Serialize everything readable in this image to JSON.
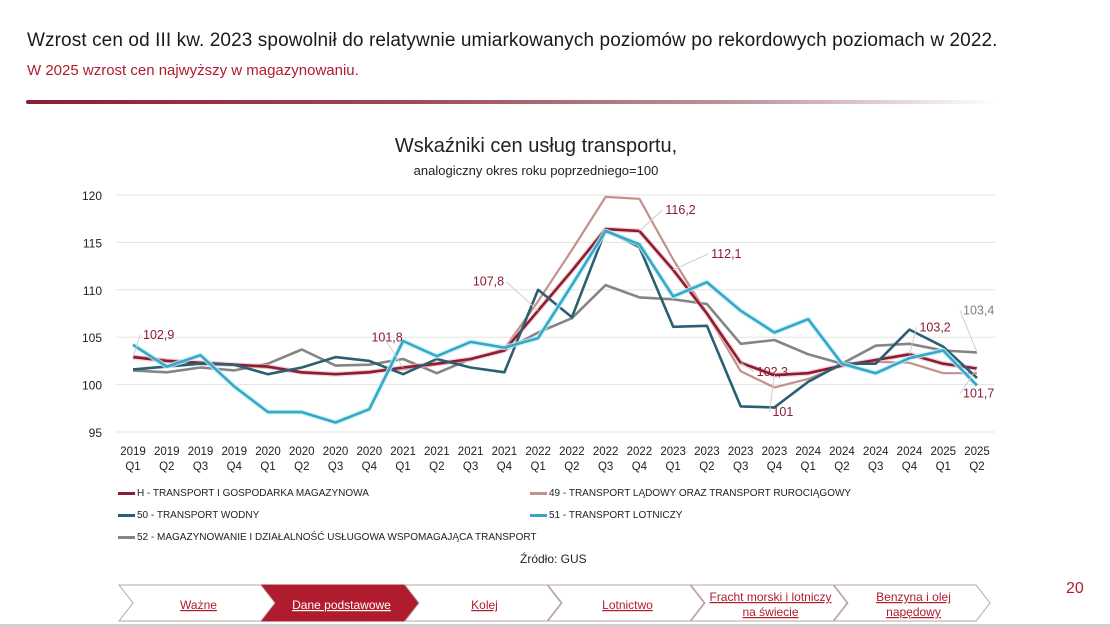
{
  "header": {
    "headline": "Wzrost cen od III kw. 2023 spowolnił do relatywnie umiarkowanych poziomów po rekordowych poziomach w 2022.",
    "subheadline": "W 2025 wzrost cen najwyższy w magazynowaniu."
  },
  "chart_data": {
    "type": "line",
    "title": "Wskaźniki cen usług transportu,",
    "subtitle": "analogiczny okres roku poprzedniego=100",
    "xlabel": "",
    "ylabel": "",
    "ylim": [
      95,
      120
    ],
    "yticks": [
      95,
      100,
      105,
      110,
      115,
      120
    ],
    "grid": true,
    "legend_position": "bottom",
    "categories": [
      [
        "2019",
        "Q1"
      ],
      [
        "2019",
        "Q2"
      ],
      [
        "2019",
        "Q3"
      ],
      [
        "2019",
        "Q4"
      ],
      [
        "2020",
        "Q1"
      ],
      [
        "2020",
        "Q2"
      ],
      [
        "2020",
        "Q3"
      ],
      [
        "2020",
        "Q4"
      ],
      [
        "2021",
        "Q1"
      ],
      [
        "2021",
        "Q2"
      ],
      [
        "2021",
        "Q3"
      ],
      [
        "2021",
        "Q4"
      ],
      [
        "2022",
        "Q1"
      ],
      [
        "2022",
        "Q2"
      ],
      [
        "2022",
        "Q3"
      ],
      [
        "2022",
        "Q4"
      ],
      [
        "2023",
        "Q1"
      ],
      [
        "2023",
        "Q2"
      ],
      [
        "2023",
        "Q3"
      ],
      [
        "2023",
        "Q4"
      ],
      [
        "2024",
        "Q1"
      ],
      [
        "2024",
        "Q2"
      ],
      [
        "2024",
        "Q3"
      ],
      [
        "2024",
        "Q4"
      ],
      [
        "2025",
        "Q1"
      ],
      [
        "2025",
        "Q2"
      ]
    ],
    "series": [
      {
        "name": "H - TRANSPORT I GOSPODARKA MAGAZYNOWA",
        "color": "#8b1d33",
        "values": [
          102.9,
          102.5,
          102.3,
          102.1,
          101.9,
          101.3,
          101.1,
          101.3,
          101.8,
          102.2,
          102.7,
          103.6,
          107.8,
          112.0,
          116.4,
          116.2,
          112.1,
          107.5,
          102.3,
          101.0,
          101.2,
          102.0,
          102.6,
          103.2,
          102.2,
          101.7
        ]
      },
      {
        "name": "49 - TRANSPORT LĄDOWY ORAZ TRANSPORT RUROCIĄGOWY",
        "color": "#c4908e",
        "values": [
          103.0,
          102.6,
          102.3,
          102.1,
          101.8,
          101.2,
          101.1,
          101.4,
          101.6,
          102.1,
          102.6,
          103.8,
          108.8,
          114.2,
          119.8,
          119.6,
          113.2,
          107.5,
          101.4,
          99.7,
          100.6,
          102.0,
          102.4,
          102.3,
          101.2,
          101.2
        ]
      },
      {
        "name": "50 - TRANSPORT WODNY",
        "color": "#2b5f72",
        "values": [
          101.6,
          101.9,
          102.2,
          102.1,
          101.1,
          101.8,
          102.9,
          102.5,
          101.1,
          102.7,
          101.8,
          101.3,
          110.0,
          107.1,
          116.3,
          114.5,
          106.1,
          106.2,
          97.7,
          97.6,
          100.3,
          102.2,
          102.2,
          105.8,
          104.0,
          100.7
        ]
      },
      {
        "name": "51 - TRANSPORT LOTNICZY",
        "color": "#3aa6c4",
        "values": [
          104.2,
          101.9,
          103.1,
          99.8,
          97.1,
          97.1,
          96.0,
          97.4,
          104.6,
          103.0,
          104.5,
          103.9,
          104.9,
          110.5,
          116.2,
          114.8,
          109.3,
          110.8,
          107.8,
          105.5,
          106.9,
          102.2,
          101.2,
          102.8,
          103.6,
          99.9
        ]
      },
      {
        "name": "52 - MAGAZYNOWANIE I DZIAŁALNOŚĆ USŁUGOWA WSPOMAGAJĄCA TRANSPORT",
        "color": "#858585",
        "values": [
          101.5,
          101.3,
          101.8,
          101.5,
          102.2,
          103.7,
          102.0,
          102.1,
          102.7,
          101.2,
          102.7,
          103.6,
          105.5,
          107.0,
          110.5,
          109.2,
          109.0,
          108.5,
          104.3,
          104.7,
          103.2,
          102.2,
          104.1,
          104.3,
          103.6,
          103.4
        ]
      }
    ],
    "annotations": [
      {
        "text": "102,9",
        "series": 0,
        "index": 0,
        "color": "#8b1d33"
      },
      {
        "text": "101,8",
        "series": 0,
        "index": 8,
        "color": "#8b1d33"
      },
      {
        "text": "107,8",
        "series": 0,
        "index": 12,
        "color": "#8b1d33"
      },
      {
        "text": "116,2",
        "series": 0,
        "index": 15,
        "color": "#8b1d33"
      },
      {
        "text": "112,1",
        "series": 0,
        "index": 16,
        "color": "#8b1d33"
      },
      {
        "text": "102,3",
        "series": 0,
        "index": 18,
        "color": "#8b1d33"
      },
      {
        "text": "101",
        "series": 0,
        "index": 19,
        "color": "#8b1d33"
      },
      {
        "text": "103,2",
        "series": 0,
        "index": 23,
        "color": "#8b1d33"
      },
      {
        "text": "101,7",
        "series": 0,
        "index": 25,
        "color": "#8b1d33"
      },
      {
        "text": "103,4",
        "series": 4,
        "index": 25,
        "color": "#808080"
      }
    ],
    "source": "Źródło: GUS"
  },
  "nav": {
    "items": [
      {
        "label": "Ważne",
        "active": false
      },
      {
        "label": "Dane podstawowe",
        "active": true
      },
      {
        "label": "Kolej",
        "active": false
      },
      {
        "label": "Lotnictwo",
        "active": false
      },
      {
        "label": "Fracht morski i lotniczy na świecie",
        "line1": "Fracht morski i lotniczy",
        "line2": "na świecie",
        "active": false
      },
      {
        "label": "Benzyna i olej napędowy",
        "line1": "Benzyna i olej",
        "line2": "napędowy",
        "active": false
      }
    ],
    "active_color": "#b01c2e",
    "link_color": "#b01c2e"
  },
  "page_number": "20"
}
